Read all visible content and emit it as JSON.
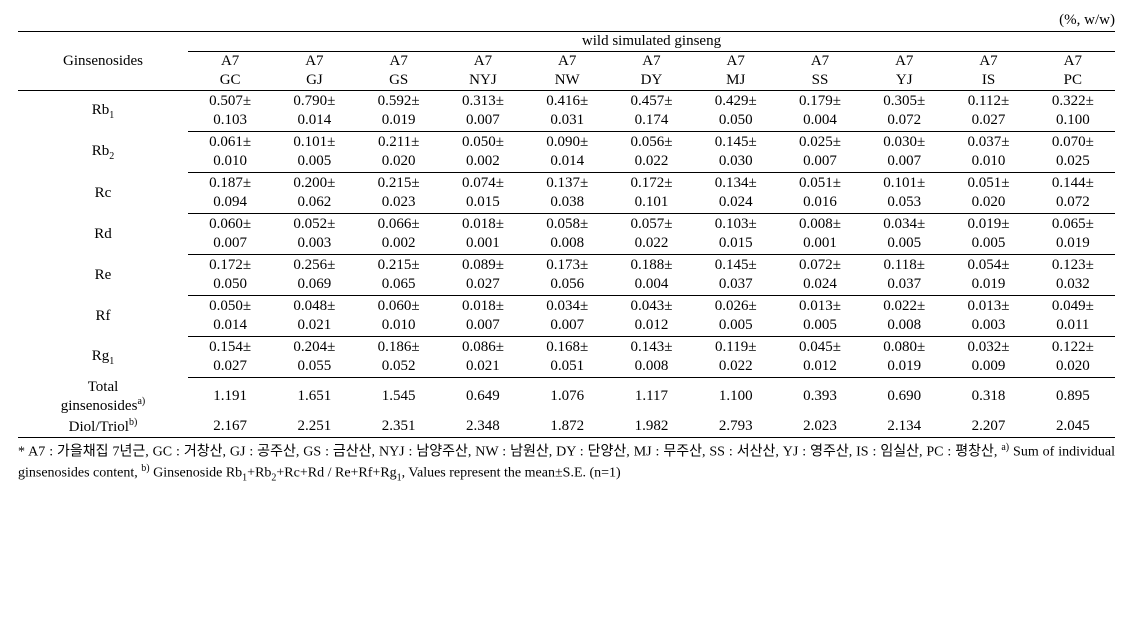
{
  "unit_label": "(%, w/w)",
  "row_header_label": "Ginsenosides",
  "super_header": "wild simulated ginseng",
  "cols": {
    "age": [
      "A7",
      "A7",
      "A7",
      "A7",
      "A7",
      "A7",
      "A7",
      "A7",
      "A7",
      "A7",
      "A7"
    ],
    "loc": [
      "GC",
      "GJ",
      "GS",
      "NYJ",
      "NW",
      "DY",
      "MJ",
      "SS",
      "YJ",
      "IS",
      "PC"
    ]
  },
  "rows": [
    {
      "name": "Rb",
      "sub": "1",
      "m": [
        "0.507±",
        "0.790±",
        "0.592±",
        "0.313±",
        "0.416±",
        "0.457±",
        "0.429±",
        "0.179±",
        "0.305±",
        "0.112±",
        "0.322±"
      ],
      "s": [
        "0.103",
        "0.014",
        "0.019",
        "0.007",
        "0.031",
        "0.174",
        "0.050",
        "0.004",
        "0.072",
        "0.027",
        "0.100"
      ]
    },
    {
      "name": "Rb",
      "sub": "2",
      "m": [
        "0.061±",
        "0.101±",
        "0.211±",
        "0.050±",
        "0.090±",
        "0.056±",
        "0.145±",
        "0.025±",
        "0.030±",
        "0.037±",
        "0.070±"
      ],
      "s": [
        "0.010",
        "0.005",
        "0.020",
        "0.002",
        "0.014",
        "0.022",
        "0.030",
        "0.007",
        "0.007",
        "0.010",
        "0.025"
      ]
    },
    {
      "name": "Rc",
      "sub": "",
      "m": [
        "0.187±",
        "0.200±",
        "0.215±",
        "0.074±",
        "0.137±",
        "0.172±",
        "0.134±",
        "0.051±",
        "0.101±",
        "0.051±",
        "0.144±"
      ],
      "s": [
        "0.094",
        "0.062",
        "0.023",
        "0.015",
        "0.038",
        "0.101",
        "0.024",
        "0.016",
        "0.053",
        "0.020",
        "0.072"
      ]
    },
    {
      "name": "Rd",
      "sub": "",
      "m": [
        "0.060±",
        "0.052±",
        "0.066±",
        "0.018±",
        "0.058±",
        "0.057±",
        "0.103±",
        "0.008±",
        "0.034±",
        "0.019±",
        "0.065±"
      ],
      "s": [
        "0.007",
        "0.003",
        "0.002",
        "0.001",
        "0.008",
        "0.022",
        "0.015",
        "0.001",
        "0.005",
        "0.005",
        "0.019"
      ]
    },
    {
      "name": "Re",
      "sub": "",
      "m": [
        "0.172±",
        "0.256±",
        "0.215±",
        "0.089±",
        "0.173±",
        "0.188±",
        "0.145±",
        "0.072±",
        "0.118±",
        "0.054±",
        "0.123±"
      ],
      "s": [
        "0.050",
        "0.069",
        "0.065",
        "0.027",
        "0.056",
        "0.004",
        "0.037",
        "0.024",
        "0.037",
        "0.019",
        "0.032"
      ]
    },
    {
      "name": "Rf",
      "sub": "",
      "m": [
        "0.050±",
        "0.048±",
        "0.060±",
        "0.018±",
        "0.034±",
        "0.043±",
        "0.026±",
        "0.013±",
        "0.022±",
        "0.013±",
        "0.049±"
      ],
      "s": [
        "0.014",
        "0.021",
        "0.010",
        "0.007",
        "0.007",
        "0.012",
        "0.005",
        "0.005",
        "0.008",
        "0.003",
        "0.011"
      ]
    },
    {
      "name": "Rg",
      "sub": "1",
      "m": [
        "0.154±",
        "0.204±",
        "0.186±",
        "0.086±",
        "0.168±",
        "0.143±",
        "0.119±",
        "0.045±",
        "0.080±",
        "0.032±",
        "0.122±"
      ],
      "s": [
        "0.027",
        "0.055",
        "0.052",
        "0.021",
        "0.051",
        "0.008",
        "0.022",
        "0.012",
        "0.019",
        "0.009",
        "0.020"
      ]
    }
  ],
  "summary": [
    {
      "label_top": "Total",
      "label_bot": "ginsenosides",
      "sup": "a)",
      "v": [
        "1.191",
        "1.651",
        "1.545",
        "0.649",
        "1.076",
        "1.117",
        "1.100",
        "0.393",
        "0.690",
        "0.318",
        "0.895"
      ]
    },
    {
      "label_top": "Diol/Triol",
      "sup": "b)",
      "v": [
        "2.167",
        "2.251",
        "2.351",
        "2.348",
        "1.872",
        "1.982",
        "2.793",
        "2.023",
        "2.134",
        "2.207",
        "2.045"
      ]
    }
  ],
  "footnote_parts": {
    "p1": "* A7 : 가을채집 7년근, GC : 거창산, GJ : 공주산, GS : 금산산, NYJ : 남양주산, NW : 남원산, DY : 단양산, MJ : 무주산, SS : 서산산, YJ : 영주산, IS : 임실산, PC : 평창산, ",
    "sup_a": "a)",
    "p2": " Sum of individual ginsenosides content, ",
    "sup_b": "b)",
    "p3": " Ginsenoside Rb",
    "sub1": "1",
    "p4": "+Rb",
    "sub2": "2",
    "p5": "+Rc+Rd / Re+Rf+Rg",
    "sub3": "1",
    "p6": ", Values represent the mean±S.E. (n=1)"
  }
}
